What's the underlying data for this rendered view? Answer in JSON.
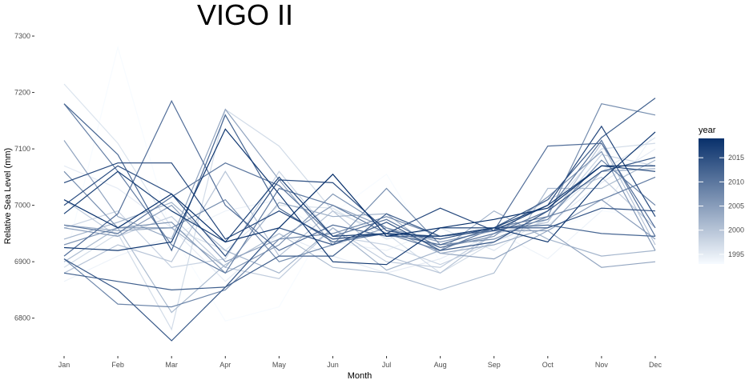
{
  "chart_data": {
    "type": "line",
    "title": "VIGO II",
    "xlabel": "Month",
    "ylabel": "Relative Sea Level (mm)",
    "categories": [
      "Jan",
      "Feb",
      "Mar",
      "Apr",
      "May",
      "Jun",
      "Jul",
      "Aug",
      "Sep",
      "Oct",
      "Nov",
      "Dec"
    ],
    "y_ticks": [
      6800,
      6900,
      7000,
      7100,
      7200,
      7300
    ],
    "ylim": [
      6740,
      7310
    ],
    "grid": false,
    "legend": {
      "title": "year",
      "placement": "right",
      "ticks": [
        1995,
        2000,
        2005,
        2010,
        2015
      ],
      "range": [
        1993,
        2019
      ],
      "colors": [
        "#f7fbff",
        "#08306b"
      ]
    },
    "series": [
      {
        "year": 1993,
        "values": [
          6895,
          7280,
          6950,
          6795,
          6820,
          6985,
          7055,
          6900,
          6940,
          6955,
          6990,
          6980
        ]
      },
      {
        "year": 1994,
        "values": [
          6865,
          6910,
          6945,
          6990,
          7010,
          6935,
          6920,
          6960,
          6955,
          6905,
          6990,
          7130
        ]
      },
      {
        "year": 1995,
        "values": [
          7070,
          7030,
          6960,
          6865,
          6950,
          6910,
          6880,
          6905,
          6950,
          6965,
          7040,
          7100
        ]
      },
      {
        "year": 1996,
        "values": [
          7215,
          7110,
          6960,
          6920,
          7000,
          6995,
          6940,
          6960,
          6920,
          6980,
          7060,
          7120
        ]
      },
      {
        "year": 1997,
        "values": [
          6890,
          6950,
          6780,
          7170,
          7105,
          6990,
          6950,
          6880,
          6935,
          6990,
          7100,
          7110
        ]
      },
      {
        "year": 1998,
        "values": [
          6960,
          6990,
          6890,
          6905,
          7060,
          6945,
          6930,
          6895,
          6935,
          6975,
          7090,
          7070
        ]
      },
      {
        "year": 1999,
        "values": [
          7010,
          6945,
          6980,
          6890,
          6870,
          6960,
          6900,
          6890,
          6950,
          7010,
          7050,
          6960
        ]
      },
      {
        "year": 2000,
        "values": [
          6880,
          6930,
          6900,
          7060,
          6910,
          6990,
          6910,
          6880,
          6950,
          6970,
          7110,
          6930
        ]
      },
      {
        "year": 2001,
        "values": [
          6900,
          6960,
          6810,
          6895,
          6950,
          6890,
          6880,
          6850,
          6880,
          7030,
          7030,
          7080
        ]
      },
      {
        "year": 2002,
        "values": [
          6940,
          6970,
          7005,
          6920,
          6880,
          6960,
          6885,
          6920,
          6990,
          6940,
          6910,
          6920
        ]
      },
      {
        "year": 2003,
        "values": [
          6965,
          6955,
          6960,
          6890,
          7005,
          6980,
          6985,
          6915,
          6930,
          6960,
          7060,
          7065
        ]
      },
      {
        "year": 2004,
        "values": [
          7115,
          6980,
          6940,
          7170,
          7045,
          6930,
          6960,
          6915,
          6905,
          6955,
          6890,
          6900
        ]
      },
      {
        "year": 2005,
        "values": [
          6960,
          6945,
          7000,
          6900,
          6940,
          7000,
          6960,
          6935,
          6955,
          6955,
          7010,
          6940
        ]
      },
      {
        "year": 2006,
        "values": [
          6930,
          6960,
          6970,
          6880,
          6930,
          7020,
          6960,
          6925,
          6945,
          7015,
          7095,
          6920
        ]
      },
      {
        "year": 2007,
        "values": [
          7060,
          6960,
          6960,
          7010,
          6900,
          6930,
          7030,
          6930,
          6940,
          6980,
          7180,
          7160
        ]
      },
      {
        "year": 2008,
        "values": [
          6905,
          6825,
          6820,
          6850,
          6940,
          6950,
          6980,
          6945,
          6955,
          6975,
          7080,
          7000
        ]
      },
      {
        "year": 2009,
        "values": [
          7180,
          7060,
          6930,
          6880,
          7030,
          7000,
          6950,
          6920,
          6960,
          6980,
          7010,
          7050
        ]
      },
      {
        "year": 2010,
        "values": [
          6965,
          6950,
          7015,
          7075,
          7035,
          6945,
          6975,
          6925,
          6950,
          6990,
          7115,
          6945
        ]
      },
      {
        "year": 2011,
        "values": [
          6910,
          6985,
          7185,
          7000,
          6920,
          6965,
          6945,
          6945,
          6955,
          7105,
          7110,
          6960
        ]
      },
      {
        "year": 2012,
        "values": [
          7180,
          7090,
          6920,
          7160,
          6995,
          6935,
          6950,
          6930,
          6960,
          6965,
          6950,
          6945
        ]
      },
      {
        "year": 2013,
        "values": [
          6880,
          6865,
          6850,
          6855,
          6910,
          6910,
          6985,
          6945,
          6960,
          7010,
          7120,
          7190
        ]
      },
      {
        "year": 2014,
        "values": [
          6905,
          6850,
          6760,
          6855,
          6960,
          6930,
          6970,
          6920,
          6935,
          6990,
          7060,
          7085
        ]
      },
      {
        "year": 2015,
        "values": [
          7000,
          7070,
          7020,
          6910,
          7045,
          7040,
          6955,
          6940,
          6960,
          6960,
          6995,
          6990
        ]
      },
      {
        "year": 2016,
        "values": [
          7040,
          7075,
          7075,
          6940,
          6990,
          6940,
          6950,
          6995,
          6955,
          7000,
          7140,
          6980
        ]
      },
      {
        "year": 2017,
        "values": [
          6985,
          7060,
          6990,
          6935,
          7050,
          6945,
          6950,
          6945,
          6960,
          7000,
          7070,
          7060
        ]
      },
      {
        "year": 2018,
        "values": [
          6925,
          6920,
          6935,
          7135,
          7020,
          6900,
          6895,
          6960,
          6960,
          6935,
          7045,
          7130
        ]
      },
      {
        "year": 2019,
        "values": [
          7010,
          6960,
          7020,
          6935,
          6960,
          7055,
          6945,
          6960,
          6975,
          6995,
          7070,
          7070
        ]
      }
    ]
  }
}
